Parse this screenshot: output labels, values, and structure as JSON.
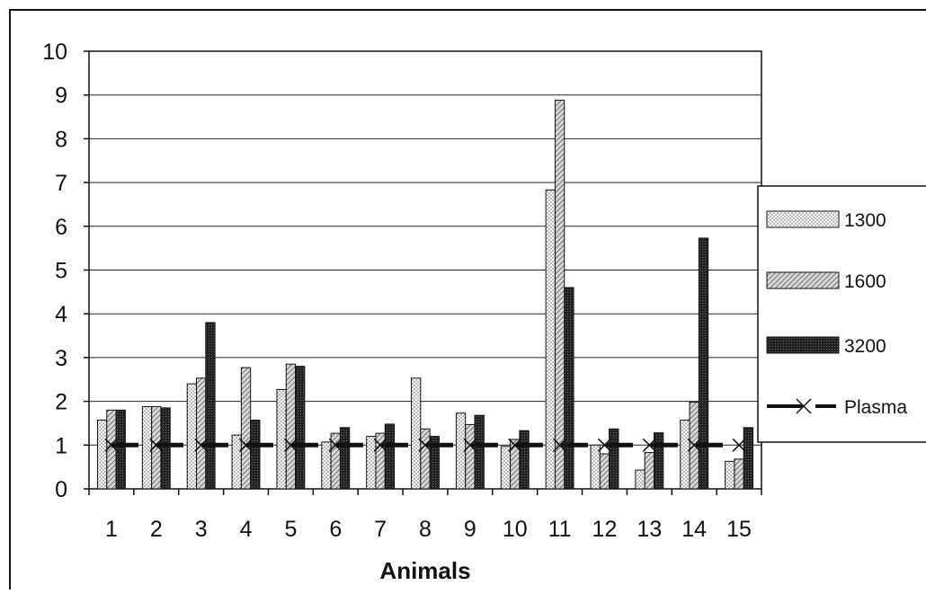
{
  "chart_data": {
    "type": "bar",
    "xlabel": "Animals",
    "ylabel": "",
    "ylim": [
      0,
      10
    ],
    "yticks": [
      "0",
      "1",
      "2",
      "3",
      "4",
      "5",
      "6",
      "7",
      "8",
      "9",
      "10"
    ],
    "categories": [
      "1",
      "2",
      "3",
      "4",
      "5",
      "6",
      "7",
      "8",
      "9",
      "10",
      "11",
      "12",
      "13",
      "14",
      "15"
    ],
    "grid": true,
    "legend_position": "right",
    "series": [
      {
        "name": "1300",
        "kind": "bar",
        "pattern": "dots",
        "color": "#f2f2f2",
        "values": [
          1.57,
          1.88,
          2.4,
          1.23,
          2.27,
          1.07,
          1.2,
          2.53,
          1.73,
          0.97,
          6.83,
          1.0,
          0.43,
          1.57,
          0.63
        ]
      },
      {
        "name": "1600",
        "kind": "bar",
        "pattern": "hatch",
        "color": "#b5b5b5",
        "values": [
          1.8,
          1.88,
          2.53,
          2.77,
          2.85,
          1.27,
          1.27,
          1.37,
          1.47,
          1.13,
          8.88,
          0.8,
          0.83,
          1.98,
          0.68
        ]
      },
      {
        "name": "3200",
        "kind": "bar",
        "pattern": "dense",
        "color": "#2e2e2e",
        "values": [
          1.8,
          1.85,
          3.8,
          1.57,
          2.8,
          1.4,
          1.48,
          1.2,
          1.68,
          1.33,
          4.6,
          1.37,
          1.28,
          5.73,
          1.4
        ]
      },
      {
        "name": "Plasma",
        "kind": "line",
        "marker": "x",
        "color": "#111111",
        "values": [
          1,
          1,
          1,
          1,
          1,
          1,
          1,
          1,
          1,
          1,
          1,
          1,
          1,
          1,
          1
        ]
      }
    ]
  }
}
